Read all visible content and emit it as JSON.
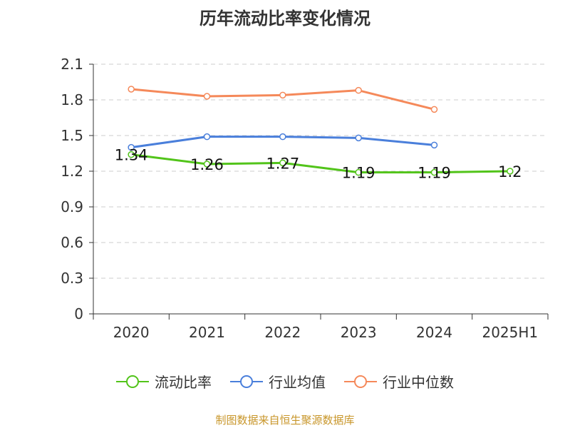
{
  "chart_data": {
    "type": "line",
    "title": "历年流动比率变化情况",
    "categories": [
      "2020",
      "2021",
      "2022",
      "2023",
      "2024",
      "2025H1"
    ],
    "y_ticks": [
      "0",
      "0.3",
      "0.6",
      "0.9",
      "1.2",
      "1.5",
      "1.8",
      "2.1"
    ],
    "ylim": [
      0,
      2.1
    ],
    "grid": true,
    "legend_position": "bottom",
    "series": [
      {
        "name": "流动比率",
        "color": "#52c41a",
        "values": [
          1.34,
          1.26,
          1.27,
          1.19,
          1.19,
          1.2
        ],
        "labels": [
          "1.34",
          "1.26",
          "1.27",
          "1.19",
          "1.19",
          "1.2"
        ]
      },
      {
        "name": "行业均值",
        "color": "#4a7fdb",
        "values": [
          1.4,
          1.49,
          1.49,
          1.48,
          1.42,
          null
        ]
      },
      {
        "name": "行业中位数",
        "color": "#f5895a",
        "values": [
          1.89,
          1.83,
          1.84,
          1.88,
          1.72,
          null
        ]
      }
    ]
  },
  "source_note": "制图数据来自恒生聚源数据库"
}
